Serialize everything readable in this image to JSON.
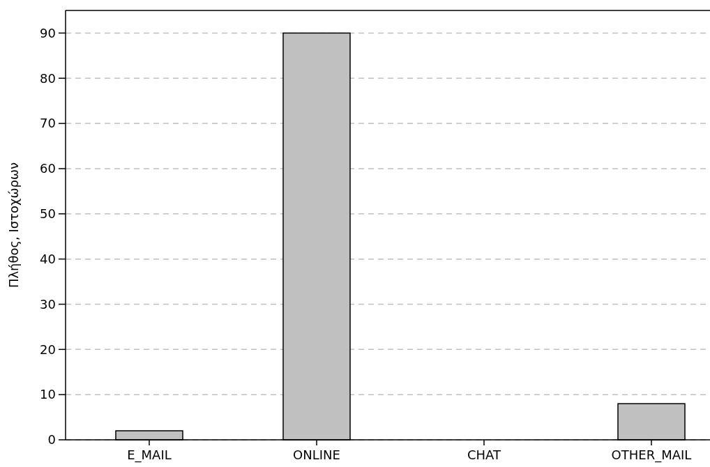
{
  "chart_data": {
    "type": "bar",
    "ylabel": "Πλήθος, Ιστοχώρων",
    "categories": [
      "E_MAIL",
      "ONLINE",
      "CHAT",
      "OTHER_MAIL"
    ],
    "values": [
      2,
      90,
      0,
      8
    ],
    "color": "#c0c0c0",
    "ylim": [
      0,
      95
    ],
    "yticks": [
      0,
      10,
      20,
      30,
      40,
      50,
      60,
      70,
      80,
      90
    ],
    "grid": "y"
  }
}
